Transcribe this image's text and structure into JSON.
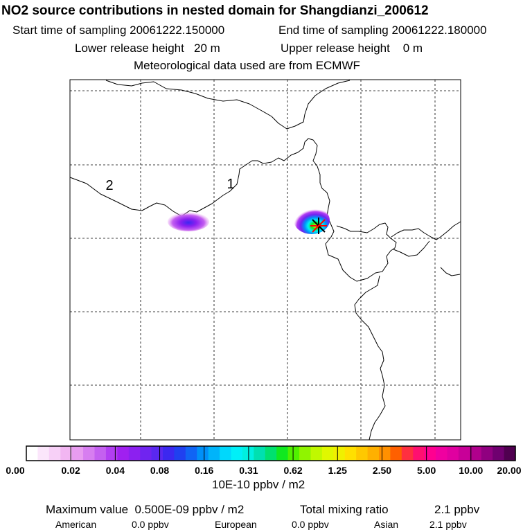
{
  "header": {
    "title": "NO2 source contributions in nested domain for Shangdianzi_200612",
    "start_label": "Start time of sampling 20061222.150000",
    "end_label": "End time of sampling 20061222.180000",
    "lower_label": "Lower release height   20 m",
    "upper_label": "Upper release height    0 m",
    "met_label": "Meteorological data used are from ECMWF"
  },
  "map": {
    "region_labels": [
      "2",
      "1"
    ]
  },
  "colorbar": {
    "tick_labels": [
      "0.00",
      "0.02",
      "0.04",
      "0.08",
      "0.16",
      "0.31",
      "0.62",
      "1.25",
      "2.50",
      "5.00",
      "10.00",
      "20.00"
    ],
    "unit_label": "10E-10 ppbv / m2",
    "colors": [
      "#ffffff",
      "#fbe6fb",
      "#f7d0f7",
      "#f2b6f2",
      "#e89cf0",
      "#d77ef0",
      "#c460f0",
      "#b23ef2",
      "#a020f0",
      "#8c20f0",
      "#7024f0",
      "#5a28f0",
      "#3c28f0",
      "#2040f0",
      "#1064f4",
      "#0090f8",
      "#00b4fa",
      "#00d8fc",
      "#00f0f8",
      "#00f0e0",
      "#00e0b0",
      "#00e070",
      "#10e820",
      "#50f000",
      "#90f400",
      "#c0f800",
      "#e0f800",
      "#f0f000",
      "#ffe000",
      "#ffc800",
      "#ffb000",
      "#ff9000",
      "#ff6000",
      "#ff3040",
      "#ff1070",
      "#ff0090",
      "#f000a0",
      "#e000a0",
      "#c80098",
      "#b0008c",
      "#900080",
      "#700070",
      "#500050"
    ]
  },
  "footer": {
    "max_label": "Maximum value  0.500E-09 ppbv / m2",
    "total_label": "Total mixing ratio",
    "total_value": "2.1 ppbv",
    "american_label": "American",
    "american_value": "0.0 ppbv",
    "european_label": "European",
    "european_value": "0.0 ppbv",
    "asian_label": "Asian",
    "asian_value": "2.1 ppbv"
  }
}
